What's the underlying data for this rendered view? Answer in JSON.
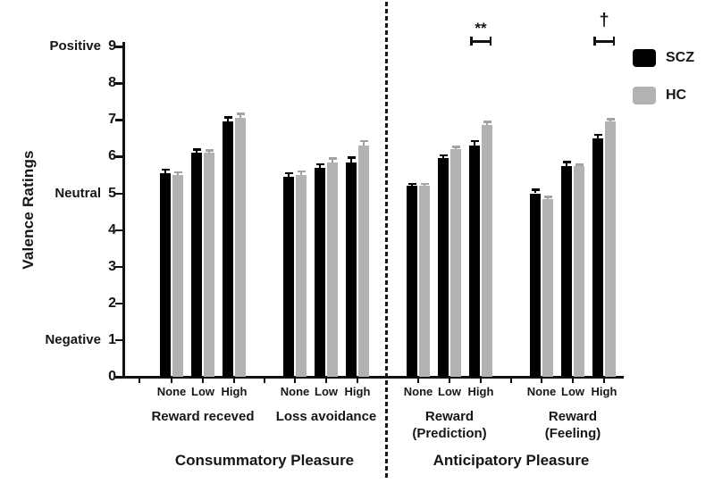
{
  "chart_data": {
    "type": "bar",
    "title": "",
    "ylabel": "Valence Ratings",
    "ylim": [
      0,
      9
    ],
    "y_ticks": [
      0,
      1,
      2,
      3,
      4,
      5,
      6,
      7,
      8,
      9
    ],
    "y_qualitative_labels": [
      {
        "text": "Positive",
        "value": 9
      },
      {
        "text": "Neutral",
        "value": 5
      },
      {
        "text": "Negative",
        "value": 1
      }
    ],
    "categories": [
      "None",
      "Low",
      "High"
    ],
    "series_names": [
      "SCZ",
      "HC"
    ],
    "legend": [
      {
        "label": "SCZ",
        "color": "#000000"
      },
      {
        "label": "HC",
        "color": "#b2b2b2"
      }
    ],
    "legend_position": "top-right",
    "grid": false,
    "groups": [
      {
        "name": "Reward receved",
        "label_lines": [
          "Reward receved"
        ],
        "section": "Consummatory Pleasure",
        "series": [
          {
            "name": "SCZ",
            "values": [
              5.55,
              6.1,
              6.95
            ],
            "errors": [
              0.13,
              0.12,
              0.15
            ]
          },
          {
            "name": "HC",
            "values": [
              5.5,
              6.1,
              7.05
            ],
            "errors": [
              0.1,
              0.1,
              0.15
            ]
          }
        ]
      },
      {
        "name": "Loss avoidance",
        "label_lines": [
          "Loss avoidance"
        ],
        "section": "Consummatory Pleasure",
        "series": [
          {
            "name": "SCZ",
            "values": [
              5.45,
              5.7,
              5.85
            ],
            "errors": [
              0.13,
              0.12,
              0.15
            ]
          },
          {
            "name": "HC",
            "values": [
              5.5,
              5.85,
              6.3
            ],
            "errors": [
              0.13,
              0.13,
              0.15
            ]
          }
        ]
      },
      {
        "name": "Reward (Prediction)",
        "label_lines": [
          "Reward",
          "(Prediction)"
        ],
        "section": "Anticipatory Pleasure",
        "series": [
          {
            "name": "SCZ",
            "values": [
              5.2,
              5.95,
              6.3
            ],
            "errors": [
              0.08,
              0.12,
              0.15
            ]
          },
          {
            "name": "HC",
            "values": [
              5.2,
              6.2,
              6.85
            ],
            "errors": [
              0.08,
              0.1,
              0.13
            ]
          }
        ]
      },
      {
        "name": "Reward (Feeling)",
        "label_lines": [
          "Reward",
          "(Feeling)"
        ],
        "section": "Anticipatory Pleasure",
        "series": [
          {
            "name": "SCZ",
            "values": [
              5.0,
              5.75,
              6.5
            ],
            "errors": [
              0.13,
              0.13,
              0.13
            ]
          },
          {
            "name": "HC",
            "values": [
              4.85,
              5.75,
              6.95
            ],
            "errors": [
              0.08,
              0.06,
              0.1
            ]
          }
        ]
      }
    ],
    "sections": [
      {
        "label": "Consummatory Pleasure",
        "groups": [
          0,
          1
        ]
      },
      {
        "label": "Anticipatory Pleasure",
        "groups": [
          2,
          3
        ]
      }
    ],
    "annotations": [
      {
        "symbol": "**",
        "group": 2,
        "category": 2
      },
      {
        "symbol": "†",
        "group": 3,
        "category": 2
      }
    ],
    "colors": {
      "scz": "#000000",
      "hc": "#b2b2b2",
      "hc_error": "#a3a3a3",
      "axis": "#111111"
    }
  }
}
